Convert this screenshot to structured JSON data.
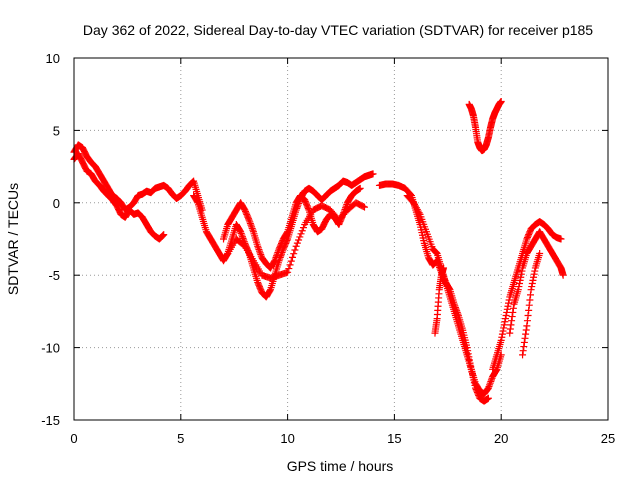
{
  "chart_data": {
    "type": "scatter",
    "title": "Day 362 of 2022, Sidereal Day-to-day VTEC variation (SDTVAR) for receiver p185",
    "xlabel": "GPS time / hours",
    "ylabel": "SDTVAR / TECUs",
    "xlim": [
      0,
      25
    ],
    "ylim": [
      -15,
      10
    ],
    "xticks": [
      0,
      5,
      10,
      15,
      20,
      25
    ],
    "yticks": [
      -15,
      -10,
      -5,
      0,
      5,
      10
    ],
    "grid": true,
    "marker": "plus",
    "series": [
      {
        "name": "SDTVAR",
        "color": "#ff0000",
        "segments": [
          {
            "x": [
              0.0,
              0.2,
              0.4,
              0.6,
              0.8,
              1.0,
              1.2,
              1.4,
              1.6,
              1.8,
              2.0,
              2.2,
              2.4,
              2.6,
              2.8,
              3.0,
              3.2,
              3.4,
              3.6,
              3.8,
              4.0,
              4.2,
              4.4,
              4.6,
              4.8,
              5.0,
              5.2,
              5.4,
              5.6,
              5.8,
              6.0
            ],
            "y": [
              3.5,
              4.0,
              3.8,
              3.2,
              2.8,
              2.5,
              2.0,
              1.5,
              1.0,
              0.5,
              0.3,
              0.0,
              -0.5,
              -0.3,
              0.0,
              0.5,
              0.6,
              0.8,
              0.7,
              1.0,
              1.1,
              1.2,
              1.0,
              0.6,
              0.3,
              0.5,
              0.8,
              1.2,
              1.5,
              0.5,
              -0.5
            ]
          },
          {
            "x": [
              0.0,
              0.2,
              0.4,
              0.6,
              0.8,
              1.0,
              1.2,
              1.4,
              1.6,
              1.8,
              2.0,
              2.2,
              2.4,
              2.6,
              2.8,
              3.0,
              3.2,
              3.4,
              3.6,
              3.8,
              4.0,
              4.2
            ],
            "y": [
              3.0,
              3.4,
              2.8,
              2.2,
              2.0,
              1.5,
              1.2,
              0.8,
              0.5,
              0.2,
              -0.2,
              -0.8,
              -1.0,
              -0.5,
              -0.8,
              -0.7,
              -1.0,
              -1.5,
              -2.0,
              -2.3,
              -2.5,
              -2.2
            ]
          },
          {
            "x": [
              5.6,
              5.8,
              6.0,
              6.2,
              6.4,
              6.6,
              6.8,
              7.0,
              7.2,
              7.4,
              7.6,
              7.8,
              8.0,
              8.2,
              8.4,
              8.6,
              8.8,
              9.0,
              9.2,
              9.4,
              9.6,
              9.8,
              10.0,
              10.2,
              10.4,
              10.6,
              10.8,
              11.0,
              11.2,
              11.4,
              11.6,
              11.8,
              12.0,
              12.2,
              12.4,
              12.6,
              12.8,
              13.0,
              13.2,
              13.4,
              13.6,
              13.8,
              14.0
            ],
            "y": [
              0.5,
              0.0,
              -1.0,
              -2.0,
              -2.5,
              -3.0,
              -3.5,
              -4.0,
              -3.5,
              -2.5,
              -1.5,
              -2.0,
              -2.8,
              -3.5,
              -4.5,
              -5.5,
              -6.2,
              -6.5,
              -6.0,
              -5.0,
              -4.0,
              -3.2,
              -2.5,
              -1.5,
              -0.5,
              0.3,
              0.8,
              1.0,
              0.8,
              0.5,
              0.2,
              0.5,
              0.8,
              1.0,
              1.2,
              1.5,
              1.4,
              1.2,
              1.4,
              1.6,
              1.8,
              1.9,
              2.0
            ]
          },
          {
            "x": [
              7.0,
              7.2,
              7.4,
              7.6,
              7.8,
              8.0,
              8.2,
              8.4,
              8.6,
              8.8,
              9.0,
              9.2,
              9.4,
              9.6,
              9.8,
              10.0,
              10.2,
              10.4,
              10.6,
              10.8,
              11.0,
              11.2,
              11.4,
              11.6,
              11.8,
              12.0,
              12.2,
              12.4,
              12.6,
              12.8,
              13.0,
              13.2,
              13.4
            ],
            "y": [
              -2.5,
              -1.5,
              -1.0,
              -0.5,
              0.0,
              -0.5,
              -1.2,
              -2.0,
              -3.0,
              -3.8,
              -4.2,
              -4.5,
              -4.0,
              -3.2,
              -2.5,
              -2.0,
              -1.0,
              0.0,
              0.5,
              0.2,
              -0.5,
              -1.5,
              -2.0,
              -1.8,
              -1.2,
              -0.8,
              -1.0,
              -1.5,
              -0.8,
              0.0,
              0.5,
              0.8,
              1.0
            ]
          },
          {
            "x": [
              7.2,
              7.6,
              8.0,
              8.4,
              8.8,
              9.2,
              9.6,
              10.0,
              10.4,
              10.8,
              11.2,
              11.6,
              12.0,
              12.4,
              12.8,
              13.2,
              13.6
            ],
            "y": [
              -3.5,
              -2.5,
              -3.0,
              -4.0,
              -5.0,
              -5.2,
              -5.0,
              -4.8,
              -3.0,
              -1.5,
              -0.5,
              -0.2,
              -0.5,
              -1.2,
              -0.5,
              0.0,
              -0.3
            ]
          },
          {
            "x": [
              14.3,
              14.6,
              14.9,
              15.2,
              15.5,
              15.8,
              16.0,
              16.2,
              16.4,
              16.6,
              16.8,
              17.0,
              17.2,
              17.4,
              17.6,
              17.8,
              18.0,
              18.2,
              18.4,
              18.6,
              18.8,
              19.0,
              19.2,
              19.4,
              19.6,
              19.8,
              20.0
            ],
            "y": [
              1.2,
              1.3,
              1.3,
              1.2,
              1.0,
              0.5,
              -0.5,
              -1.5,
              -2.8,
              -3.8,
              -4.3,
              -4.0,
              -4.8,
              -5.5,
              -6.5,
              -7.5,
              -8.5,
              -9.5,
              -10.5,
              -11.5,
              -12.5,
              -13.0,
              -13.2,
              -12.8,
              -12.0,
              -11.5,
              -10.5
            ]
          },
          {
            "x": [
              15.6,
              15.9,
              16.2,
              16.5,
              16.8,
              17.0,
              17.2,
              17.4,
              17.6,
              17.8,
              18.0,
              18.2,
              18.4,
              18.6,
              18.8,
              19.0,
              19.2,
              19.4
            ],
            "y": [
              0.5,
              0.0,
              -0.8,
              -2.0,
              -3.2,
              -3.5,
              -4.5,
              -5.5,
              -6.0,
              -7.0,
              -7.8,
              -8.8,
              -10.0,
              -11.5,
              -12.8,
              -13.5,
              -13.7,
              -13.5
            ]
          },
          {
            "x": [
              16.9,
              17.0,
              17.1,
              17.2,
              17.3
            ],
            "y": [
              -9.0,
              -8.0,
              -6.0,
              -5.0,
              -4.5
            ]
          },
          {
            "x": [
              18.5,
              18.6,
              18.7,
              18.8,
              18.9,
              19.0,
              19.1,
              19.2,
              19.3,
              19.4,
              19.5,
              19.6,
              19.7,
              19.8,
              19.9,
              20.0
            ],
            "y": [
              6.8,
              6.5,
              6.0,
              5.2,
              4.2,
              3.8,
              3.6,
              3.7,
              4.0,
              4.5,
              5.2,
              5.8,
              6.2,
              6.5,
              6.8,
              7.0
            ]
          },
          {
            "x": [
              19.6,
              19.8,
              20.0,
              20.2,
              20.4,
              20.6,
              20.8,
              21.0,
              21.2,
              21.4,
              21.6,
              21.8,
              22.0,
              22.2,
              22.4,
              22.6,
              22.8
            ],
            "y": [
              -11.5,
              -10.5,
              -9.5,
              -8.0,
              -6.5,
              -5.5,
              -4.5,
              -3.5,
              -2.5,
              -1.8,
              -1.5,
              -1.3,
              -1.5,
              -1.8,
              -2.2,
              -2.4,
              -2.5
            ]
          },
          {
            "x": [
              20.4,
              20.6,
              20.8,
              21.0,
              21.2,
              21.4,
              21.6,
              21.8,
              22.0,
              22.2,
              22.4,
              22.6,
              22.8,
              22.9
            ],
            "y": [
              -9.0,
              -7.0,
              -6.0,
              -4.5,
              -3.5,
              -3.0,
              -2.5,
              -2.0,
              -2.5,
              -3.0,
              -3.5,
              -4.0,
              -4.5,
              -5.0
            ]
          },
          {
            "x": [
              21.0,
              21.2,
              21.4,
              21.6,
              21.8
            ],
            "y": [
              -10.5,
              -8.5,
              -6.0,
              -4.5,
              -3.5
            ]
          }
        ]
      }
    ]
  }
}
